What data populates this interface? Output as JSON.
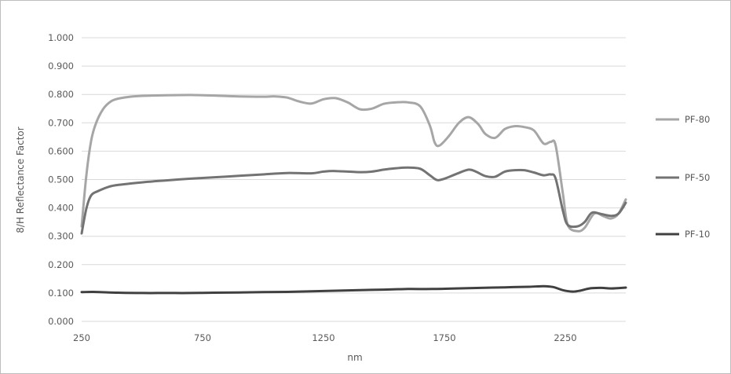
{
  "chart_data": {
    "type": "line",
    "title": "",
    "xlabel": "nm",
    "ylabel": "8/H Reflectance Factor",
    "xlim": [
      250,
      2500
    ],
    "ylim": [
      0,
      1.0
    ],
    "x_ticks": [
      "250",
      "750",
      "1250",
      "1750",
      "2250"
    ],
    "y_ticks": [
      "0.000",
      "0.100",
      "0.200",
      "0.300",
      "0.400",
      "0.500",
      "0.600",
      "0.700",
      "0.800",
      "0.900",
      "1.000"
    ],
    "grid": true,
    "legend_position": "right",
    "series": [
      {
        "name": "PF-80",
        "color": "#a6a6a6",
        "points": [
          [
            250,
            0.335
          ],
          [
            270,
            0.52
          ],
          [
            290,
            0.64
          ],
          [
            310,
            0.7
          ],
          [
            340,
            0.75
          ],
          [
            370,
            0.775
          ],
          [
            400,
            0.785
          ],
          [
            450,
            0.792
          ],
          [
            500,
            0.795
          ],
          [
            600,
            0.797
          ],
          [
            700,
            0.798
          ],
          [
            800,
            0.796
          ],
          [
            900,
            0.793
          ],
          [
            1000,
            0.792
          ],
          [
            1050,
            0.793
          ],
          [
            1100,
            0.789
          ],
          [
            1150,
            0.775
          ],
          [
            1200,
            0.768
          ],
          [
            1250,
            0.783
          ],
          [
            1300,
            0.787
          ],
          [
            1350,
            0.772
          ],
          [
            1400,
            0.748
          ],
          [
            1450,
            0.75
          ],
          [
            1500,
            0.767
          ],
          [
            1550,
            0.772
          ],
          [
            1600,
            0.772
          ],
          [
            1650,
            0.758
          ],
          [
            1690,
            0.69
          ],
          [
            1710,
            0.63
          ],
          [
            1730,
            0.62
          ],
          [
            1770,
            0.655
          ],
          [
            1810,
            0.7
          ],
          [
            1850,
            0.72
          ],
          [
            1890,
            0.695
          ],
          [
            1920,
            0.66
          ],
          [
            1960,
            0.647
          ],
          [
            2000,
            0.678
          ],
          [
            2040,
            0.688
          ],
          [
            2080,
            0.685
          ],
          [
            2120,
            0.673
          ],
          [
            2160,
            0.627
          ],
          [
            2190,
            0.633
          ],
          [
            2210,
            0.62
          ],
          [
            2240,
            0.45
          ],
          [
            2260,
            0.34
          ],
          [
            2300,
            0.318
          ],
          [
            2330,
            0.33
          ],
          [
            2370,
            0.38
          ],
          [
            2410,
            0.37
          ],
          [
            2440,
            0.363
          ],
          [
            2470,
            0.38
          ],
          [
            2500,
            0.43
          ]
        ]
      },
      {
        "name": "PF-50",
        "color": "#737373",
        "points": [
          [
            250,
            0.31
          ],
          [
            270,
            0.4
          ],
          [
            290,
            0.445
          ],
          [
            320,
            0.46
          ],
          [
            360,
            0.474
          ],
          [
            400,
            0.481
          ],
          [
            500,
            0.49
          ],
          [
            600,
            0.497
          ],
          [
            700,
            0.503
          ],
          [
            800,
            0.508
          ],
          [
            900,
            0.513
          ],
          [
            1000,
            0.518
          ],
          [
            1100,
            0.523
          ],
          [
            1200,
            0.522
          ],
          [
            1250,
            0.528
          ],
          [
            1300,
            0.53
          ],
          [
            1400,
            0.526
          ],
          [
            1450,
            0.528
          ],
          [
            1500,
            0.535
          ],
          [
            1550,
            0.54
          ],
          [
            1600,
            0.542
          ],
          [
            1650,
            0.538
          ],
          [
            1690,
            0.515
          ],
          [
            1720,
            0.498
          ],
          [
            1750,
            0.503
          ],
          [
            1800,
            0.52
          ],
          [
            1850,
            0.535
          ],
          [
            1880,
            0.528
          ],
          [
            1920,
            0.512
          ],
          [
            1960,
            0.51
          ],
          [
            2000,
            0.528
          ],
          [
            2040,
            0.533
          ],
          [
            2080,
            0.533
          ],
          [
            2120,
            0.525
          ],
          [
            2160,
            0.515
          ],
          [
            2190,
            0.518
          ],
          [
            2210,
            0.503
          ],
          [
            2240,
            0.39
          ],
          [
            2260,
            0.34
          ],
          [
            2300,
            0.335
          ],
          [
            2330,
            0.35
          ],
          [
            2360,
            0.383
          ],
          [
            2400,
            0.378
          ],
          [
            2440,
            0.372
          ],
          [
            2470,
            0.38
          ],
          [
            2500,
            0.418
          ]
        ]
      },
      {
        "name": "PF-10",
        "color": "#404040",
        "points": [
          [
            250,
            0.103
          ],
          [
            300,
            0.104
          ],
          [
            400,
            0.101
          ],
          [
            500,
            0.1
          ],
          [
            600,
            0.1
          ],
          [
            700,
            0.1
          ],
          [
            800,
            0.101
          ],
          [
            900,
            0.102
          ],
          [
            1000,
            0.103
          ],
          [
            1100,
            0.104
          ],
          [
            1200,
            0.106
          ],
          [
            1300,
            0.108
          ],
          [
            1400,
            0.11
          ],
          [
            1500,
            0.112
          ],
          [
            1600,
            0.114
          ],
          [
            1700,
            0.114
          ],
          [
            1800,
            0.116
          ],
          [
            1900,
            0.118
          ],
          [
            2000,
            0.12
          ],
          [
            2100,
            0.122
          ],
          [
            2160,
            0.124
          ],
          [
            2200,
            0.121
          ],
          [
            2240,
            0.11
          ],
          [
            2280,
            0.105
          ],
          [
            2310,
            0.108
          ],
          [
            2350,
            0.116
          ],
          [
            2400,
            0.118
          ],
          [
            2440,
            0.116
          ],
          [
            2500,
            0.119
          ]
        ]
      }
    ]
  }
}
